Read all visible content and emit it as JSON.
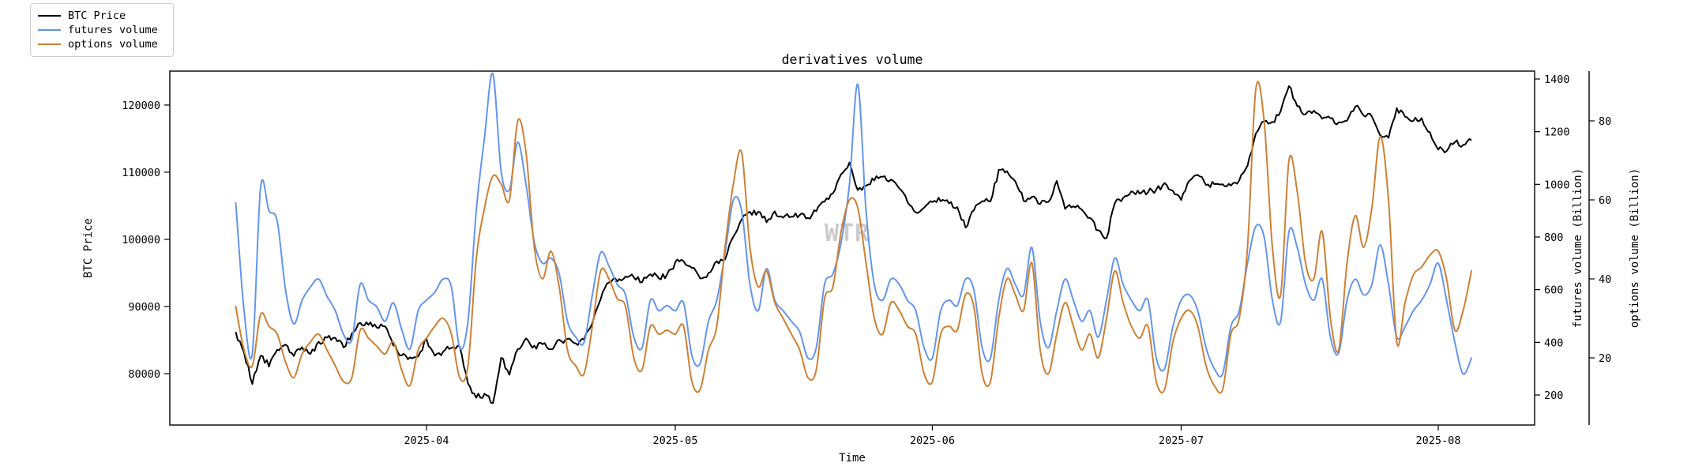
{
  "title": "derivatives volume",
  "watermark": {
    "text": "WTR",
    "color": "rgba(140,140,140,0.45)"
  },
  "colors": {
    "btc": "#000000",
    "futures": "#6495ed",
    "options": "#cd8136",
    "spine": "#000000"
  },
  "legend": {
    "items": [
      {
        "label": "BTC Price",
        "color": "#000000"
      },
      {
        "label": "futures volume",
        "color": "#6495ed"
      },
      {
        "label": "options volume",
        "color": "#cd8136"
      }
    ]
  },
  "axes": {
    "x": {
      "label": "Time",
      "tick_labels": [
        "2025-04",
        "2025-05",
        "2025-06",
        "2025-07",
        "2025-08"
      ],
      "tick_days": [
        23,
        53,
        84,
        114,
        145
      ]
    },
    "btc": {
      "label": "BTC Price",
      "ticks": [
        120000,
        110000,
        100000,
        90000,
        80000
      ]
    },
    "futures": {
      "label": "futures volume (Billion)",
      "ticks": [
        1400,
        1200,
        1000,
        800,
        600,
        400,
        200
      ]
    },
    "options": {
      "label": "options volume (Billion)",
      "ticks": [
        80,
        60,
        40,
        20
      ]
    }
  },
  "chart_data": {
    "type": "line",
    "title": "derivatives volume",
    "x_start_date": "2025-03-09",
    "x_end_date": "2025-08-05",
    "x_unit": "day",
    "n_points": 150,
    "legend_position": "upper-left-outside",
    "grid": false,
    "axis_ranges": {
      "btc": [
        72350,
        125050
      ],
      "futures": [
        86,
        1430
      ],
      "options": [
        3,
        92.6
      ]
    },
    "series": [
      {
        "name": "BTC Price",
        "axis": "btc",
        "color": "#000000",
        "style": "noisy",
        "values": [
          86100,
          83000,
          78600,
          82800,
          81200,
          83700,
          84400,
          82600,
          84100,
          82800,
          84600,
          85300,
          85500,
          83900,
          86000,
          87600,
          87400,
          86900,
          87100,
          84300,
          82700,
          82400,
          82500,
          85100,
          82600,
          83300,
          84000,
          83900,
          78500,
          76500,
          76900,
          75600,
          82500,
          79700,
          83600,
          85100,
          84000,
          84500,
          83600,
          84900,
          85100,
          84500,
          85200,
          87400,
          91200,
          93700,
          93900,
          94600,
          94300,
          93700,
          94900,
          94200,
          94600,
          96500,
          96800,
          95900,
          94300,
          94900,
          96700,
          97100,
          100400,
          102900,
          104100,
          104000,
          102700,
          104100,
          103300,
          103500,
          103600,
          103100,
          104200,
          105500,
          106800,
          109600,
          111500,
          107500,
          108000,
          108900,
          109300,
          108800,
          107700,
          105700,
          104000,
          104600,
          105700,
          105800,
          105300,
          104700,
          101700,
          104400,
          105600,
          105700,
          110200,
          110000,
          108700,
          105900,
          106200,
          105400,
          105500,
          108800,
          104700,
          104900,
          104600,
          103300,
          101200,
          100100,
          105500,
          106000,
          107300,
          106800,
          107100,
          107300,
          108300,
          107200,
          105700,
          108800,
          109600,
          108100,
          108200,
          108300,
          108100,
          108900,
          111100,
          115900,
          117600,
          117400,
          119000,
          122800,
          119900,
          118700,
          119300,
          118000,
          117900,
          117300,
          117500,
          119900,
          118600,
          118400,
          115600,
          115100,
          119400,
          118200,
          117700,
          117900,
          115800,
          113400,
          113200,
          114500,
          114100,
          114900
        ]
      },
      {
        "name": "futures volume",
        "axis": "futures",
        "color": "#6495ed",
        "style": "smooth",
        "values": [
          930,
          520,
          360,
          990,
          900,
          860,
          600,
          470,
          560,
          610,
          640,
          575,
          520,
          430,
          410,
          620,
          560,
          535,
          480,
          550,
          450,
          375,
          520,
          560,
          590,
          640,
          610,
          380,
          480,
          900,
          1180,
          1420,
          1050,
          980,
          1160,
          1000,
          780,
          700,
          720,
          660,
          480,
          420,
          400,
          580,
          740,
          690,
          620,
          580,
          420,
          380,
          560,
          520,
          540,
          520,
          550,
          350,
          320,
          480,
          560,
          740,
          940,
          900,
          620,
          520,
          680,
          560,
          520,
          480,
          440,
          340,
          380,
          620,
          660,
          780,
          1000,
          1380,
          900,
          620,
          560,
          640,
          620,
          560,
          520,
          380,
          340,
          520,
          560,
          540,
          640,
          600,
          380,
          340,
          560,
          680,
          620,
          580,
          760,
          480,
          380,
          520,
          640,
          560,
          480,
          520,
          420,
          560,
          720,
          620,
          560,
          520,
          560,
          340,
          300,
          460,
          560,
          580,
          520,
          380,
          300,
          280,
          460,
          520,
          700,
          840,
          800,
          560,
          480,
          820,
          760,
          620,
          560,
          640,
          420,
          360,
          560,
          640,
          580,
          620,
          770,
          620,
          420,
          460,
          520,
          560,
          620,
          700,
          560,
          400,
          280,
          340
        ]
      },
      {
        "name": "options volume",
        "axis": "options",
        "color": "#cd8136",
        "style": "smooth",
        "values": [
          33,
          22,
          18,
          31,
          28,
          26,
          19,
          15,
          21,
          24,
          26,
          22,
          18,
          14,
          15,
          27,
          25,
          23,
          21,
          24,
          17,
          13,
          22,
          25,
          28,
          30,
          26,
          15,
          18,
          45,
          58,
          66,
          64,
          60,
          80,
          72,
          48,
          40,
          47,
          38,
          22,
          18,
          16,
          28,
          42,
          40,
          35,
          33,
          20,
          17,
          28,
          26,
          27,
          26,
          28,
          14,
          12,
          22,
          28,
          48,
          64,
          72,
          48,
          38,
          42,
          34,
          30,
          26,
          22,
          15,
          17,
          35,
          38,
          52,
          60,
          58,
          44,
          30,
          26,
          34,
          32,
          28,
          26,
          16,
          14,
          26,
          28,
          27,
          36,
          33,
          16,
          14,
          30,
          40,
          36,
          32,
          44,
          22,
          16,
          26,
          34,
          28,
          22,
          26,
          20,
          30,
          42,
          34,
          28,
          25,
          28,
          14,
          12,
          24,
          30,
          32,
          28,
          18,
          13,
          12,
          26,
          30,
          48,
          88,
          80,
          48,
          36,
          70,
          62,
          44,
          40,
          52,
          30,
          22,
          44,
          56,
          48,
          58,
          76,
          60,
          24,
          34,
          41,
          43,
          46,
          47,
          40,
          27,
          32,
          42
        ]
      }
    ]
  }
}
